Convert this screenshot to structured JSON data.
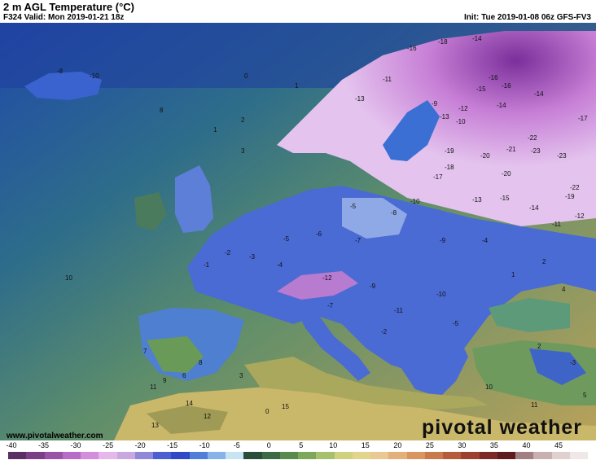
{
  "header": {
    "title": "2 m AGL Temperature (°C)",
    "valid": "F324 Valid: Mon 2019-01-21 18z",
    "init": "Init: Tue 2019-01-08 06z GFS-FV3"
  },
  "footer": {
    "website": "www.pivotalweather.com",
    "logo": "pivotal weather"
  },
  "colorbar": {
    "ticks": [
      "-40",
      "-35",
      "-30",
      "-25",
      "-20",
      "-15",
      "-10",
      "-5",
      "0",
      "5",
      "10",
      "15",
      "20",
      "25",
      "30",
      "35",
      "40",
      "45"
    ],
    "colors": [
      "#5a2f63",
      "#7a3f86",
      "#9a52a8",
      "#b96bc9",
      "#d38ddc",
      "#e6b7ea",
      "#c9a8e0",
      "#8f87d8",
      "#4b5fd1",
      "#2f49c8",
      "#4f7fd8",
      "#87b3ea",
      "#c8e3f2",
      "#2a4d3a",
      "#3d6a45",
      "#5a8a4c",
      "#7da85a",
      "#a6c06e",
      "#cfd17e",
      "#e2d58b",
      "#eac891",
      "#e3b07a",
      "#d8955f",
      "#c97a4d",
      "#b55c3b",
      "#9c4030",
      "#7d2a26",
      "#5e1c1f",
      "#a08080",
      "#c8b0b0",
      "#e0d0d0",
      "#f0e8e8"
    ]
  },
  "labels": [
    {
      "t": "-8"
    },
    {
      "t": "-10"
    },
    {
      "t": "0"
    },
    {
      "t": "1"
    },
    {
      "t": "2"
    },
    {
      "t": "3"
    },
    {
      "t": "1"
    },
    {
      "t": "10"
    },
    {
      "t": "8"
    },
    {
      "t": "-16"
    },
    {
      "t": "-14"
    },
    {
      "t": "-18"
    },
    {
      "t": "-16"
    },
    {
      "t": "-11"
    },
    {
      "t": "-13"
    },
    {
      "t": "-9"
    },
    {
      "t": "-15"
    },
    {
      "t": "-16"
    },
    {
      "t": "-12"
    },
    {
      "t": "-14"
    },
    {
      "t": "-13"
    },
    {
      "t": "-14"
    },
    {
      "t": "-17"
    },
    {
      "t": "-10"
    },
    {
      "t": "-22"
    },
    {
      "t": "-21"
    },
    {
      "t": "-23"
    },
    {
      "t": "-23"
    },
    {
      "t": "-19"
    },
    {
      "t": "-20"
    },
    {
      "t": "-18"
    },
    {
      "t": "-17"
    },
    {
      "t": "-20"
    },
    {
      "t": "-22"
    },
    {
      "t": "-19"
    },
    {
      "t": "-13"
    },
    {
      "t": "-15"
    },
    {
      "t": "-14"
    },
    {
      "t": "-12"
    },
    {
      "t": "-11"
    },
    {
      "t": "-10"
    },
    {
      "t": "-8"
    },
    {
      "t": "-9"
    },
    {
      "t": "-7"
    },
    {
      "t": "-6"
    },
    {
      "t": "-5"
    },
    {
      "t": "-4"
    },
    {
      "t": "-3"
    },
    {
      "t": "-2"
    },
    {
      "t": "-1"
    },
    {
      "t": "1"
    },
    {
      "t": "2"
    },
    {
      "t": "4"
    },
    {
      "t": "-12"
    },
    {
      "t": "-11"
    },
    {
      "t": "-10"
    },
    {
      "t": "-9"
    },
    {
      "t": "-7"
    },
    {
      "t": "-5"
    },
    {
      "t": "-3"
    },
    {
      "t": "2"
    },
    {
      "t": "7"
    },
    {
      "t": "14"
    },
    {
      "t": "11"
    },
    {
      "t": "6"
    },
    {
      "t": "8"
    },
    {
      "t": "9"
    },
    {
      "t": "13"
    },
    {
      "t": "15"
    },
    {
      "t": "12"
    },
    {
      "t": "3"
    },
    {
      "t": "0"
    },
    {
      "t": "-2"
    },
    {
      "t": "10"
    },
    {
      "t": "11"
    },
    {
      "t": "5"
    },
    {
      "t": "-4"
    },
    {
      "t": "-5"
    }
  ]
}
